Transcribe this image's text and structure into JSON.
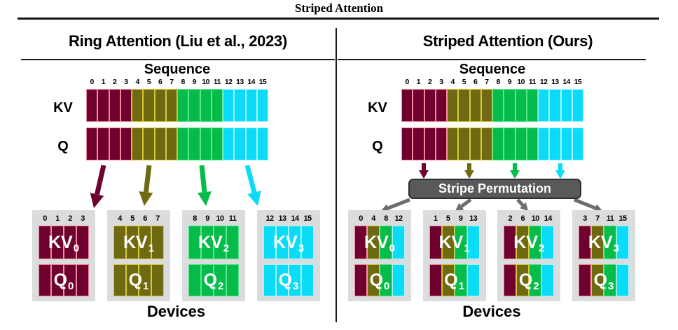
{
  "header": {
    "title": "Striped Attention"
  },
  "colors": {
    "maroon": {
      "fill": "#6E012D",
      "border": "#F08C9C"
    },
    "olive": {
      "fill": "#6F6A12",
      "border": "#D8C73A"
    },
    "green": {
      "fill": "#05BC4B",
      "border": "#5BE791"
    },
    "cyan": {
      "fill": "#0ADCF7",
      "border": "#ACF3FD"
    },
    "device_box_bg": "#DADCDE",
    "permutation_box_bg": "#58595B",
    "permutation_box_border": "#2D2D2F",
    "permutation_text": "#FFFFFF",
    "gray_arrow": "#6A6C6E",
    "rule": "#1C1C1C"
  },
  "panels": [
    {
      "key": "ring",
      "title": "Ring Attention (Liu et al., 2023)",
      "sequence": {
        "label": "Sequence",
        "kv_row_label": "KV",
        "q_row_label": "Q",
        "cells": [
          {
            "index": "0",
            "color": "maroon"
          },
          {
            "index": "1",
            "color": "maroon"
          },
          {
            "index": "2",
            "color": "maroon"
          },
          {
            "index": "3",
            "color": "maroon"
          },
          {
            "index": "4",
            "color": "olive"
          },
          {
            "index": "5",
            "color": "olive"
          },
          {
            "index": "6",
            "color": "olive"
          },
          {
            "index": "7",
            "color": "olive"
          },
          {
            "index": "8",
            "color": "green"
          },
          {
            "index": "9",
            "color": "green"
          },
          {
            "index": "10",
            "color": "green"
          },
          {
            "index": "11",
            "color": "green"
          },
          {
            "index": "12",
            "color": "cyan"
          },
          {
            "index": "13",
            "color": "cyan"
          },
          {
            "index": "14",
            "color": "cyan"
          },
          {
            "index": "15",
            "color": "cyan"
          }
        ]
      },
      "arrows": {
        "type": "direct",
        "colors": [
          "maroon",
          "olive",
          "green",
          "cyan"
        ]
      },
      "devices": {
        "label": "Devices",
        "boxes": [
          {
            "indices": [
              "0",
              "1",
              "2",
              "3"
            ],
            "colors": [
              "maroon",
              "maroon",
              "maroon",
              "maroon"
            ],
            "kv": {
              "base": "KV",
              "sub": "0"
            },
            "q": {
              "base": "Q",
              "sub": "0"
            }
          },
          {
            "indices": [
              "4",
              "5",
              "6",
              "7"
            ],
            "colors": [
              "olive",
              "olive",
              "olive",
              "olive"
            ],
            "kv": {
              "base": "KV",
              "sub": "1"
            },
            "q": {
              "base": "Q",
              "sub": "1"
            }
          },
          {
            "indices": [
              "8",
              "9",
              "10",
              "11"
            ],
            "colors": [
              "green",
              "green",
              "green",
              "green"
            ],
            "kv": {
              "base": "KV",
              "sub": "2"
            },
            "q": {
              "base": "Q",
              "sub": "2"
            }
          },
          {
            "indices": [
              "12",
              "13",
              "14",
              "15"
            ],
            "colors": [
              "cyan",
              "cyan",
              "cyan",
              "cyan"
            ],
            "kv": {
              "base": "KV",
              "sub": "3"
            },
            "q": {
              "base": "Q",
              "sub": "3"
            }
          }
        ]
      }
    },
    {
      "key": "striped",
      "title": "Striped Attention (Ours)",
      "sequence": {
        "label": "Sequence",
        "kv_row_label": "KV",
        "q_row_label": "Q",
        "cells": [
          {
            "index": "0",
            "color": "maroon"
          },
          {
            "index": "1",
            "color": "maroon"
          },
          {
            "index": "2",
            "color": "maroon"
          },
          {
            "index": "3",
            "color": "maroon"
          },
          {
            "index": "4",
            "color": "olive"
          },
          {
            "index": "5",
            "color": "olive"
          },
          {
            "index": "6",
            "color": "olive"
          },
          {
            "index": "7",
            "color": "olive"
          },
          {
            "index": "8",
            "color": "green"
          },
          {
            "index": "9",
            "color": "green"
          },
          {
            "index": "10",
            "color": "green"
          },
          {
            "index": "11",
            "color": "green"
          },
          {
            "index": "12",
            "color": "cyan"
          },
          {
            "index": "13",
            "color": "cyan"
          },
          {
            "index": "14",
            "color": "cyan"
          },
          {
            "index": "15",
            "color": "cyan"
          }
        ]
      },
      "permutation": {
        "label": "Stripe Permutation"
      },
      "arrows": {
        "type": "permuted",
        "colors": [
          "maroon",
          "olive",
          "green",
          "cyan"
        ]
      },
      "devices": {
        "label": "Devices",
        "boxes": [
          {
            "indices": [
              "0",
              "4",
              "8",
              "12"
            ],
            "colors": [
              "maroon",
              "olive",
              "green",
              "cyan"
            ],
            "kv": {
              "base": "KV",
              "sub": "0"
            },
            "q": {
              "base": "Q",
              "sub": "0"
            }
          },
          {
            "indices": [
              "1",
              "5",
              "9",
              "13"
            ],
            "colors": [
              "maroon",
              "olive",
              "green",
              "cyan"
            ],
            "kv": {
              "base": "KV",
              "sub": "1"
            },
            "q": {
              "base": "Q",
              "sub": "1"
            }
          },
          {
            "indices": [
              "2",
              "6",
              "10",
              "14"
            ],
            "colors": [
              "maroon",
              "olive",
              "green",
              "cyan"
            ],
            "kv": {
              "base": "KV",
              "sub": "2"
            },
            "q": {
              "base": "Q",
              "sub": "2"
            }
          },
          {
            "indices": [
              "3",
              "7",
              "11",
              "15"
            ],
            "colors": [
              "maroon",
              "olive",
              "green",
              "cyan"
            ],
            "kv": {
              "base": "KV",
              "sub": "3"
            },
            "q": {
              "base": "Q",
              "sub": "3"
            }
          }
        ]
      }
    }
  ]
}
